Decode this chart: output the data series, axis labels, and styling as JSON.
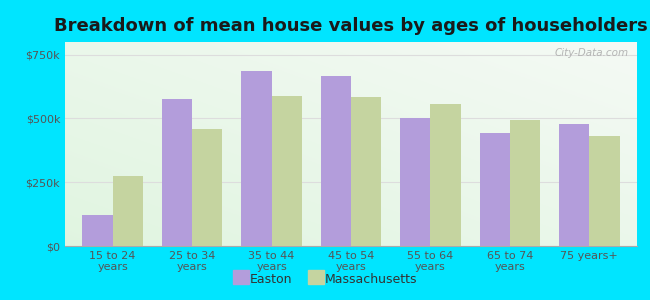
{
  "title": "Breakdown of mean house values by ages of householders",
  "categories": [
    "15 to 24\nyears",
    "25 to 34\nyears",
    "35 to 44\nyears",
    "45 to 54\nyears",
    "55 to 64\nyears",
    "65 to 74\nyears",
    "75 years+"
  ],
  "easton_values": [
    120000,
    575000,
    685000,
    665000,
    500000,
    445000,
    480000
  ],
  "massachusetts_values": [
    275000,
    460000,
    590000,
    585000,
    555000,
    495000,
    430000
  ],
  "easton_color": "#b39ddb",
  "massachusetts_color": "#c5d4a0",
  "ylim": [
    0,
    800000
  ],
  "yticks": [
    0,
    250000,
    500000,
    750000
  ],
  "ytick_labels": [
    "$0",
    "$250k",
    "$500k",
    "$750k"
  ],
  "background_color": "#00e5ff",
  "legend_labels": [
    "Easton",
    "Massachusetts"
  ],
  "watermark": "City-Data.com",
  "title_fontsize": 13,
  "tick_fontsize": 8,
  "legend_fontsize": 9
}
